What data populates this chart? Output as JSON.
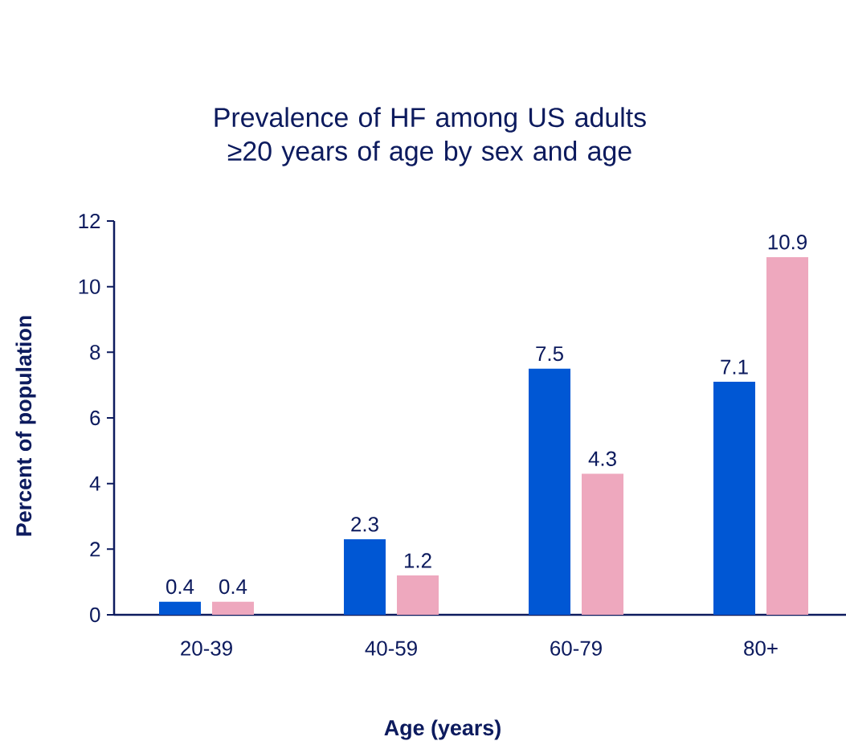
{
  "chart_data": {
    "type": "bar",
    "title": "Prevalence of HF among US adults ≥20 years of age by sex and age",
    "xlabel": "Age (years)",
    "ylabel": "Percent of population",
    "categories": [
      "20-39",
      "40-59",
      "60-79",
      "80+"
    ],
    "series": [
      {
        "color": "#0057d4",
        "values": [
          0.4,
          2.3,
          7.5,
          7.1
        ],
        "value_labels": [
          "0.4",
          "2.3",
          "7.5",
          "7.1"
        ]
      },
      {
        "color": "#eea8be",
        "values": [
          0.4,
          1.2,
          4.3,
          10.9
        ],
        "value_labels": [
          "0.4",
          "1.2",
          "4.3",
          "10.9"
        ]
      }
    ],
    "ylim": [
      0,
      12
    ],
    "yticks": [
      0,
      2,
      4,
      6,
      8,
      10,
      12
    ],
    "grid": false
  }
}
